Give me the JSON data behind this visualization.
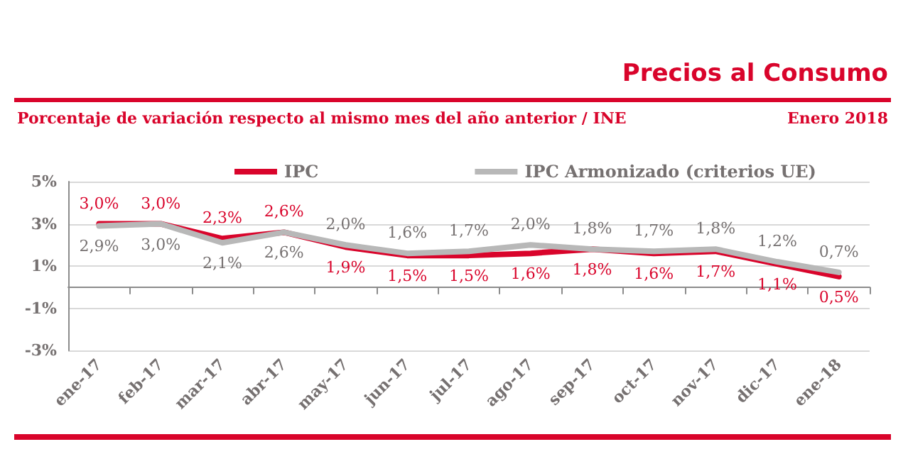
{
  "chart_data": {
    "type": "line",
    "title": "Precios al Consumo",
    "subtitle": "Porcentaje de variación respecto al mismo mes del año anterior / INE",
    "annotations": [
      "Enero 2018"
    ],
    "categories": [
      "ene-17",
      "feb-17",
      "mar-17",
      "abr-17",
      "may-17",
      "jun-17",
      "jul-17",
      "ago-17",
      "sep-17",
      "oct-17",
      "nov-17",
      "dic-17",
      "ene-18"
    ],
    "series": [
      {
        "name": "IPC",
        "color": "#d9042b",
        "values": [
          3.0,
          3.0,
          2.3,
          2.6,
          1.9,
          1.5,
          1.5,
          1.6,
          1.8,
          1.6,
          1.7,
          1.1,
          0.5
        ],
        "value_labels": [
          "3,0%",
          "3,0%",
          "2,3%",
          "2,6%",
          "1,9%",
          "1,5%",
          "1,5%",
          "1,6%",
          "1,8%",
          "1,6%",
          "1,7%",
          "1,1%",
          "0,5%"
        ]
      },
      {
        "name": "IPC Armonizado (criterios UE)",
        "color": "#b8b8b8",
        "values": [
          2.9,
          3.0,
          2.1,
          2.6,
          2.0,
          1.6,
          1.7,
          2.0,
          1.8,
          1.7,
          1.8,
          1.2,
          0.7
        ],
        "value_labels": [
          "2,9%",
          "3,0%",
          "2,1%",
          "2,6%",
          "2,0%",
          "1,6%",
          "1,7%",
          "2,0%",
          "1,8%",
          "1,7%",
          "1,8%",
          "1,2%",
          "0,7%"
        ]
      }
    ],
    "ylim": [
      -3,
      5
    ],
    "yticks": [
      {
        "value": -3,
        "label": "-3%"
      },
      {
        "value": -1,
        "label": "-1%"
      },
      {
        "value": 1,
        "label": "1%"
      },
      {
        "value": 3,
        "label": "3%"
      },
      {
        "value": 5,
        "label": "5%"
      }
    ],
    "grid": "y",
    "legend": "top",
    "marker": "none",
    "line_style": "solid"
  }
}
